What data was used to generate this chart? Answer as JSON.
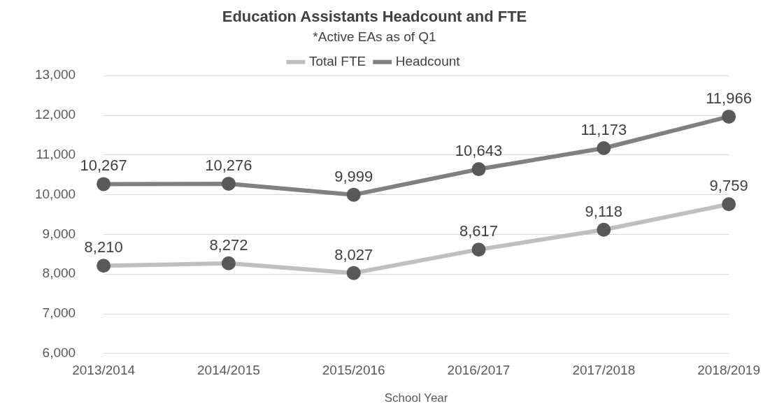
{
  "chart_data": {
    "type": "line",
    "title": "Education Assistants Headcount and FTE",
    "subtitle": "*Active EAs as of Q1",
    "xlabel": "School Year",
    "categories": [
      "2013/2014",
      "2014/2015",
      "2015/2016",
      "2016/2017",
      "2017/2018",
      "2018/2019"
    ],
    "series": [
      {
        "name": "Total FTE",
        "color": "#bfbfbf",
        "values": [
          8210,
          8272,
          8027,
          8617,
          9118,
          9759
        ],
        "value_labels": [
          "8,210",
          "8,272",
          "8,027",
          "8,617",
          "9,118",
          "9,759"
        ]
      },
      {
        "name": "Headcount",
        "color": "#808080",
        "values": [
          10267,
          10276,
          9999,
          10643,
          11173,
          11966
        ],
        "value_labels": [
          "10,267",
          "10,276",
          "9,999",
          "10,643",
          "11,173",
          "11,966"
        ]
      }
    ],
    "ylim": [
      6000,
      13000
    ],
    "yticks": [
      {
        "value": 6000,
        "label": "6,000"
      },
      {
        "value": 7000,
        "label": "7,000"
      },
      {
        "value": 8000,
        "label": "8,000"
      },
      {
        "value": 9000,
        "label": "9,000"
      },
      {
        "value": 10000,
        "label": "10,000"
      },
      {
        "value": 11000,
        "label": "11,000"
      },
      {
        "value": 12000,
        "label": "12,000"
      },
      {
        "value": 13000,
        "label": "13,000"
      }
    ],
    "grid": "y",
    "legend": "top",
    "marker": "circle",
    "line_style": "solid"
  }
}
